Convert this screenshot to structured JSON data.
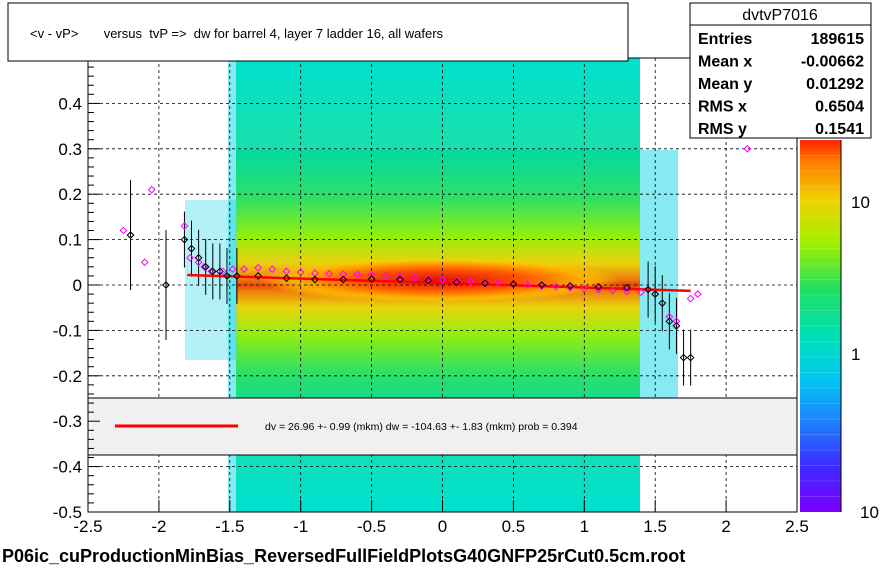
{
  "title": "<v - vP>       versus  tvP =>  dw for barrel 4, layer 7 ladder 16, all wafers",
  "footer": "P06ic_cuProductionMinBias_ReversedFullFieldPlotsG40GNFP25rCut0.5cm.root",
  "stats": {
    "name": "dvtvP7016",
    "rows": [
      {
        "label": "Entries",
        "value": "189615"
      },
      {
        "label": "Mean x",
        "value": "-0.00662"
      },
      {
        "label": "Mean y",
        "value": "0.01292"
      },
      {
        "label": "RMS x",
        "value": "0.6504"
      },
      {
        "label": "RMS y",
        "value": "0.1541"
      }
    ]
  },
  "fit_legend": "dv =   26.96 +-  0.99 (mkm) dw = -104.63 +-  1.83 (mkm) prob = 0.394",
  "colors": {
    "fit_line": "#ff0000",
    "profile_black": "#000000",
    "profile_magenta": "#ff00ff",
    "grid": "#000000"
  },
  "chart_data": {
    "type": "heatmap",
    "title": "<v - vP>       versus  tvP =>  dw for barrel 4, layer 7 ladder 16, all wafers",
    "xlim": [
      -2.5,
      2.5
    ],
    "ylim": [
      -0.5,
      0.5
    ],
    "x_ticks": [
      "-2.5",
      "-2",
      "-1.5",
      "-1",
      "-0.5",
      "0",
      "0.5",
      "1",
      "1.5",
      "2",
      "2.5"
    ],
    "y_ticks": [
      "-0.5",
      "-0.4",
      "-0.3",
      "-0.2",
      "-0.1",
      "0",
      "0.1",
      "0.2",
      "0.3",
      "0.4"
    ],
    "colorbar": {
      "scale": "log",
      "labels": [
        "1",
        "10"
      ],
      "bottom_label": "10"
    },
    "grid": true,
    "fit_line": {
      "x": [
        -1.8,
        1.75
      ],
      "y": [
        0.022,
        -0.013
      ]
    },
    "profile_black": {
      "x": [
        -2.2,
        -1.95,
        -1.82,
        -1.77,
        -1.72,
        -1.67,
        -1.62,
        -1.57,
        -1.52,
        -1.45,
        -1.3,
        -1.1,
        -0.9,
        -0.7,
        -0.5,
        -0.3,
        -0.1,
        0.1,
        0.3,
        0.5,
        0.7,
        0.9,
        1.1,
        1.3,
        1.45,
        1.5,
        1.55,
        1.6,
        1.65,
        1.7,
        1.75
      ],
      "y": [
        0.11,
        0.0,
        0.1,
        0.08,
        0.06,
        0.04,
        0.03,
        0.03,
        0.02,
        0.02,
        0.02,
        0.015,
        0.012,
        0.012,
        0.013,
        0.012,
        0.01,
        0.006,
        0.004,
        0.002,
        0.0,
        -0.002,
        -0.004,
        -0.006,
        -0.01,
        -0.02,
        -0.04,
        -0.08,
        -0.09,
        -0.16,
        -0.16
      ]
    },
    "profile_magenta": {
      "x": [
        -2.25,
        -2.2,
        -2.1,
        -2.05,
        -1.82,
        -1.78,
        -1.72,
        -1.68,
        -1.63,
        -1.55,
        -1.48,
        -1.4,
        -1.3,
        -1.2,
        -1.1,
        -1.0,
        -0.9,
        -0.8,
        -0.7,
        -0.6,
        -0.5,
        -0.4,
        -0.3,
        -0.2,
        -0.1,
        0.0,
        0.1,
        0.2,
        0.3,
        0.4,
        0.5,
        0.6,
        0.7,
        0.8,
        0.9,
        1.0,
        1.1,
        1.2,
        1.3,
        1.4,
        1.5,
        1.6,
        1.65,
        1.75,
        1.8,
        2.15
      ],
      "y": [
        0.12,
        0.11,
        0.05,
        0.21,
        0.13,
        0.06,
        0.05,
        0.04,
        0.03,
        0.03,
        0.035,
        0.035,
        0.038,
        0.035,
        0.03,
        0.028,
        0.026,
        0.025,
        0.024,
        0.023,
        0.022,
        0.02,
        0.018,
        0.016,
        0.014,
        0.012,
        0.01,
        0.008,
        0.006,
        0.004,
        0.002,
        0.0,
        -0.002,
        -0.004,
        -0.006,
        -0.008,
        -0.01,
        -0.012,
        -0.014,
        -0.016,
        -0.02,
        -0.07,
        -0.08,
        -0.03,
        -0.02,
        0.3
      ]
    }
  }
}
